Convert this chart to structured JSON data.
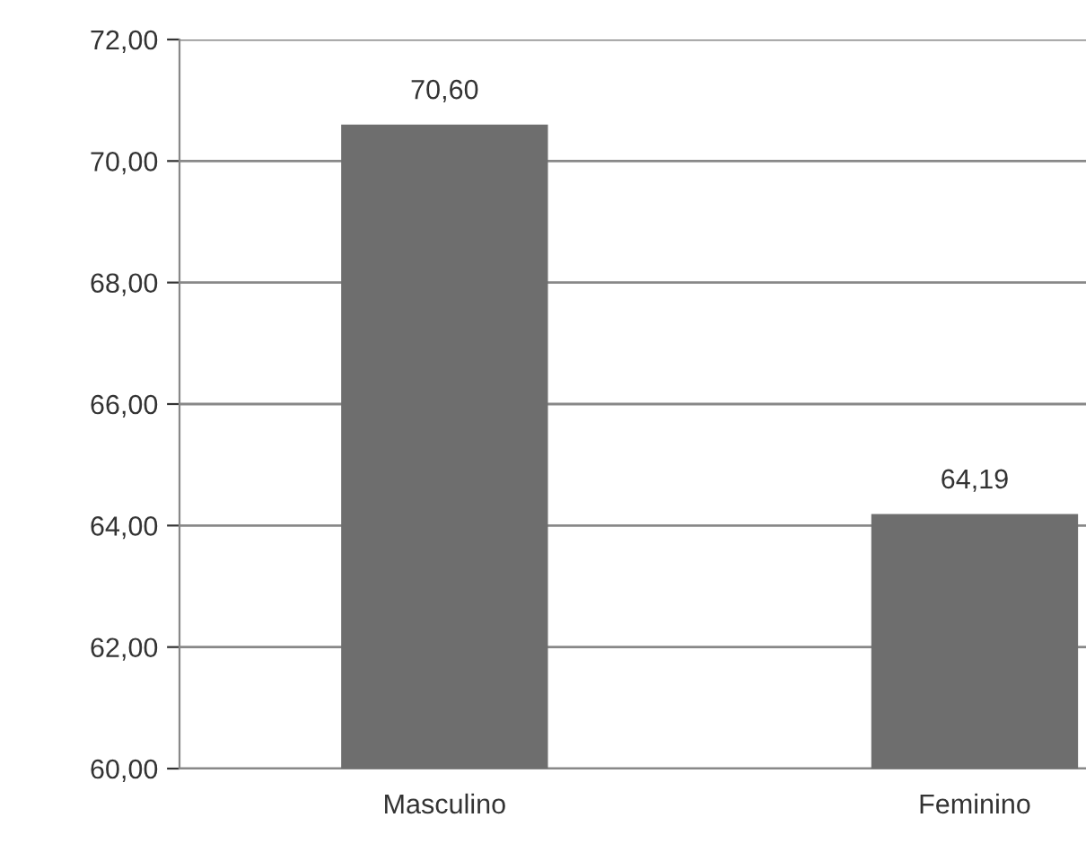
{
  "chart_data": {
    "type": "bar",
    "categories": [
      "Masculino",
      "Feminino"
    ],
    "values": [
      70.6,
      64.19
    ],
    "color": "#6e6e6e",
    "value_labels": [
      "70,60",
      "64,19"
    ],
    "ylim": [
      60,
      72
    ],
    "yticks": [
      {
        "value": 60,
        "label": "60,00"
      },
      {
        "value": 62,
        "label": "62,00"
      },
      {
        "value": 64,
        "label": "64,00"
      },
      {
        "value": 66,
        "label": "66,00"
      },
      {
        "value": 68,
        "label": "68,00"
      },
      {
        "value": 70,
        "label": "70,00"
      },
      {
        "value": 72,
        "label": "72,00"
      }
    ],
    "grid": "y",
    "legend": false
  }
}
